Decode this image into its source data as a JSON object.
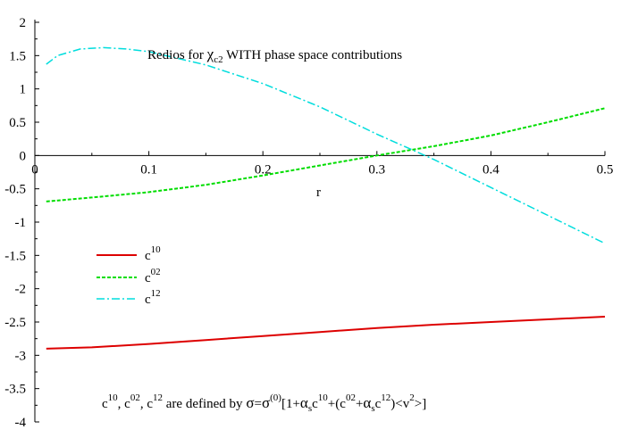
{
  "chart_data": {
    "type": "line",
    "title": "Redios for χc2 WITH phase space contributions",
    "xlabel": "r",
    "ylabel": "",
    "xlim": [
      0,
      0.5
    ],
    "ylim": [
      -4,
      2
    ],
    "x_ticks": [
      "0",
      "0.1",
      "0.2",
      "0.3",
      "0.4",
      "0.5"
    ],
    "y_ticks": [
      "2",
      "1.5",
      "1",
      "0.5",
      "0",
      "-0.5",
      "-1",
      "-1.5",
      "-2",
      "-2.5",
      "-3",
      "-3.5",
      "-4"
    ],
    "legend_position": "left-middle",
    "grid": false,
    "series": [
      {
        "name": "c10",
        "color": "#dd0000",
        "style": "solid",
        "x": [
          0.01,
          0.05,
          0.1,
          0.15,
          0.2,
          0.25,
          0.3,
          0.35,
          0.4,
          0.45,
          0.5
        ],
        "y": [
          -2.9,
          -2.88,
          -2.83,
          -2.77,
          -2.71,
          -2.65,
          -2.59,
          -2.54,
          -2.5,
          -2.46,
          -2.42
        ]
      },
      {
        "name": "c02",
        "color": "#00dd00",
        "style": "dashed",
        "x": [
          0.01,
          0.05,
          0.1,
          0.15,
          0.2,
          0.25,
          0.3,
          0.35,
          0.4,
          0.45,
          0.5
        ],
        "y": [
          -0.69,
          -0.63,
          -0.55,
          -0.44,
          -0.3,
          -0.15,
          0.0,
          0.14,
          0.3,
          0.5,
          0.71
        ]
      },
      {
        "name": "c12",
        "color": "#00dddd",
        "style": "dashdot",
        "x": [
          0.01,
          0.02,
          0.04,
          0.06,
          0.08,
          0.1,
          0.15,
          0.2,
          0.25,
          0.3,
          0.35,
          0.4,
          0.45,
          0.5
        ],
        "y": [
          1.37,
          1.5,
          1.6,
          1.62,
          1.6,
          1.56,
          1.36,
          1.08,
          0.73,
          0.32,
          -0.06,
          -0.48,
          -0.9,
          -1.32
        ]
      }
    ],
    "legend": [
      {
        "main": "c",
        "sup": "10"
      },
      {
        "main": "c",
        "sup": "02"
      },
      {
        "main": "c",
        "sup": "12"
      }
    ],
    "title_parts": {
      "prefix": "Redios for ",
      "chi": "χ",
      "chi_sub": "c2",
      "suffix": " WITH phase space contributions"
    },
    "annotation": {
      "c": "c",
      "s10": "10",
      "comma": ", ",
      "s02": "02",
      "s12": "12",
      "are": " are defined by ",
      "sigma": "σ",
      "eq": "=",
      "s0": "(0)",
      "br1": "[1+",
      "alpha": "α",
      "sub_s": "s",
      "plus_paren": "+(",
      "plus": "+",
      "close_lt": ")<",
      "v": "v",
      "two": "2",
      "gt_close": ">]"
    }
  }
}
